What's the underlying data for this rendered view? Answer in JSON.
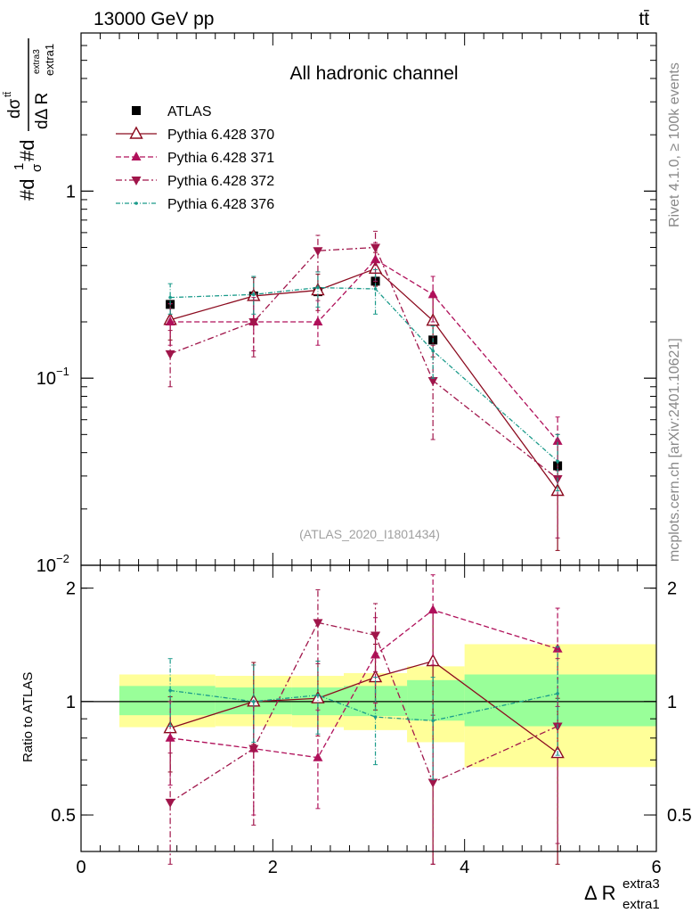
{
  "header": {
    "energy_label": "13000 GeV pp",
    "process_label": "tt̄",
    "channel_label": "All hadronic channel",
    "analysis_id": "(ATLAS_2020_I1801434)",
    "rivet_label": "Rivet 4.1.0, ≥ 100k events",
    "mcplots_label": "mcplots.cern.ch [arXiv:2401.10621]"
  },
  "top_ylabel": {
    "part1": "#d",
    "part2": "#d",
    "frac1_num": "1",
    "frac1_den": "σ",
    "frac2_num": "dσ",
    "frac2_num_sup": "tt̄",
    "frac2_den": "dΔ R",
    "frac2_den_sub": "extra1",
    "frac2_den_sup": "extra3"
  },
  "bottom_ylabel": "Ratio to ATLAS",
  "xlabel": {
    "main": "Δ R",
    "sup": "extra3",
    "sub": "extra1"
  },
  "colors": {
    "atlas": "#000000",
    "p370": "#8b0a1e",
    "p371": "#b0105a",
    "p372": "#a0154a",
    "p376": "#1a9a8a",
    "band_outer": "#ffff99",
    "band_inner": "#99ff99"
  },
  "chart_data": [
    {
      "type": "line",
      "panel": "main",
      "yscale": "log",
      "xlim": [
        0,
        6
      ],
      "ylim": [
        0.01,
        7
      ],
      "x_ticks": [
        0,
        2,
        4,
        6
      ],
      "y_ticks": [
        {
          "value": 1,
          "label": "1"
        },
        {
          "value": 0.1,
          "label": "10",
          "exp": "−1"
        },
        {
          "value": 0.01,
          "label": "10",
          "exp": "−2"
        }
      ],
      "legend": [
        {
          "key": "atlas",
          "label": "ATLAS"
        },
        {
          "key": "p370",
          "label": "Pythia 6.428 370"
        },
        {
          "key": "p371",
          "label": "Pythia 6.428 371"
        },
        {
          "key": "p372",
          "label": "Pythia 6.428 372"
        },
        {
          "key": "p376",
          "label": "Pythia 6.428 376"
        }
      ],
      "series": [
        {
          "key": "atlas",
          "name": "ATLAS",
          "x": [
            0.93,
            1.8,
            2.47,
            3.07,
            3.67,
            4.97
          ],
          "xerr_lo": [
            0.53,
            0.4,
            0.27,
            0.33,
            0.27,
            0.97
          ],
          "xerr_hi": [
            0.53,
            0.4,
            0.27,
            0.33,
            0.33,
            1.03
          ],
          "y": [
            0.248,
            0.275,
            0.29,
            0.33,
            0.16,
            0.034
          ]
        },
        {
          "key": "p370",
          "name": "Pythia 6.428 370",
          "x": [
            0.93,
            1.8,
            2.47,
            3.07,
            3.67,
            4.97
          ],
          "xerr_lo": [
            0.53,
            0.4,
            0.27,
            0.33,
            0.27,
            0.97
          ],
          "xerr_hi": [
            0.53,
            0.4,
            0.27,
            0.33,
            0.33,
            1.03
          ],
          "y": [
            0.205,
            0.275,
            0.295,
            0.385,
            0.203,
            0.025
          ],
          "ylo": [
            0.16,
            0.2,
            0.23,
            0.31,
            0.13,
            0.012
          ],
          "yhi": [
            0.25,
            0.345,
            0.36,
            0.47,
            0.28,
            0.05
          ]
        },
        {
          "key": "p371",
          "name": "Pythia 6.428 371",
          "x": [
            0.93,
            1.8,
            2.47,
            3.07,
            3.67,
            4.97
          ],
          "xerr_lo": [
            0.53,
            0.4,
            0.27,
            0.33,
            0.27,
            0.97
          ],
          "xerr_hi": [
            0.53,
            0.4,
            0.27,
            0.33,
            0.33,
            1.03
          ],
          "y": [
            0.2,
            0.2,
            0.2,
            0.43,
            0.28,
            0.046
          ],
          "ylo": [
            0.15,
            0.14,
            0.15,
            0.33,
            0.2,
            0.032
          ],
          "yhi": [
            0.25,
            0.27,
            0.26,
            0.53,
            0.35,
            0.062
          ]
        },
        {
          "key": "p372",
          "name": "Pythia 6.428 372",
          "x": [
            0.93,
            1.8,
            2.47,
            3.07,
            3.67,
            4.97
          ],
          "xerr_lo": [
            0.53,
            0.4,
            0.27,
            0.33,
            0.27,
            0.97
          ],
          "xerr_hi": [
            0.53,
            0.4,
            0.27,
            0.33,
            0.33,
            1.03
          ],
          "y": [
            0.135,
            0.2,
            0.48,
            0.5,
            0.097,
            0.029
          ],
          "ylo": [
            0.09,
            0.13,
            0.37,
            0.4,
            0.047,
            0.014
          ],
          "yhi": [
            0.18,
            0.28,
            0.58,
            0.61,
            0.15,
            0.045
          ]
        },
        {
          "key": "p376",
          "name": "Pythia 6.428 376",
          "x": [
            0.93,
            1.8,
            2.47,
            3.07,
            3.67,
            4.97
          ],
          "xerr_lo": [
            0.53,
            0.4,
            0.27,
            0.33,
            0.27,
            0.97
          ],
          "xerr_hi": [
            0.53,
            0.4,
            0.27,
            0.33,
            0.33,
            1.03
          ],
          "y": [
            0.27,
            0.28,
            0.305,
            0.3,
            0.14,
            0.036
          ],
          "ylo": [
            0.22,
            0.22,
            0.24,
            0.22,
            0.1,
            0.025
          ],
          "yhi": [
            0.32,
            0.35,
            0.37,
            0.38,
            0.19,
            0.05
          ]
        }
      ]
    },
    {
      "type": "line",
      "panel": "ratio",
      "yscale": "log",
      "xlim": [
        0,
        6
      ],
      "ylim": [
        0.4,
        2.3
      ],
      "ylabel": "Ratio to ATLAS",
      "x_ticks": [
        0,
        2,
        4,
        6
      ],
      "y_ticks": [
        {
          "value": 0.5,
          "label": "0.5"
        },
        {
          "value": 1,
          "label": "1"
        },
        {
          "value": 2,
          "label": "2"
        }
      ],
      "bands": {
        "x_edges": [
          0.4,
          1.4,
          2.2,
          2.74,
          3.4,
          4.0,
          6.0
        ],
        "outer_lo": [
          0.855,
          0.86,
          0.855,
          0.84,
          0.78,
          0.67
        ],
        "outer_hi": [
          1.18,
          1.17,
          1.17,
          1.19,
          1.24,
          1.42
        ],
        "inner_lo": [
          0.92,
          0.925,
          0.92,
          0.915,
          0.89,
          0.86
        ],
        "inner_hi": [
          1.1,
          1.09,
          1.09,
          1.1,
          1.14,
          1.18
        ]
      },
      "series": [
        {
          "key": "p370",
          "name": "Pythia 6.428 370",
          "x": [
            0.93,
            1.8,
            2.47,
            3.07,
            3.67,
            4.97
          ],
          "xerr_lo": [
            0.53,
            0.4,
            0.27,
            0.33,
            0.27,
            0.97
          ],
          "xerr_hi": [
            0.53,
            0.4,
            0.27,
            0.33,
            0.33,
            1.03
          ],
          "y": [
            0.85,
            1.0,
            1.02,
            1.16,
            1.28,
            0.73
          ],
          "ylo": [
            0.65,
            0.77,
            0.81,
            0.95,
            0.37,
            0.37
          ],
          "yhi": [
            1.03,
            1.27,
            1.28,
            1.42,
            1.72,
            1.02
          ]
        },
        {
          "key": "p371",
          "name": "Pythia 6.428 371",
          "x": [
            0.93,
            1.8,
            2.47,
            3.07,
            3.67,
            4.97
          ],
          "xerr_lo": [
            0.53,
            0.4,
            0.27,
            0.33,
            0.27,
            0.97
          ],
          "xerr_hi": [
            0.53,
            0.4,
            0.27,
            0.33,
            0.33,
            1.03
          ],
          "y": [
            0.8,
            0.75,
            0.71,
            1.33,
            1.75,
            1.38
          ],
          "ylo": [
            0.6,
            0.5,
            0.52,
            0.99,
            1.25,
            0.97
          ],
          "yhi": [
            1.0,
            1.0,
            0.95,
            1.67,
            2.17,
            1.77
          ]
        },
        {
          "key": "p372",
          "name": "Pythia 6.428 372",
          "x": [
            0.93,
            1.8,
            2.47,
            3.07,
            3.67,
            4.97
          ],
          "xerr_lo": [
            0.53,
            0.4,
            0.27,
            0.33,
            0.27,
            0.97
          ],
          "xerr_hi": [
            0.53,
            0.4,
            0.27,
            0.33,
            0.33,
            1.03
          ],
          "y": [
            0.54,
            0.75,
            1.62,
            1.5,
            0.61,
            0.86
          ],
          "ylo": [
            0.37,
            0.47,
            1.26,
            1.2,
            0.37,
            0.42
          ],
          "yhi": [
            0.73,
            1.0,
            1.98,
            1.82,
            0.92,
            1.3
          ]
        },
        {
          "key": "p376",
          "name": "Pythia 6.428 376",
          "x": [
            0.93,
            1.8,
            2.47,
            3.07,
            3.67,
            4.97
          ],
          "xerr_lo": [
            0.53,
            0.4,
            0.27,
            0.33,
            0.27,
            0.97
          ],
          "xerr_hi": [
            0.53,
            0.4,
            0.27,
            0.33,
            0.33,
            1.03
          ],
          "y": [
            1.07,
            1.0,
            1.04,
            0.91,
            0.89,
            1.05
          ],
          "ylo": [
            0.86,
            0.78,
            0.82,
            0.68,
            0.62,
            0.72
          ],
          "yhi": [
            1.3,
            1.25,
            1.28,
            1.16,
            1.16,
            1.4
          ]
        }
      ]
    }
  ]
}
